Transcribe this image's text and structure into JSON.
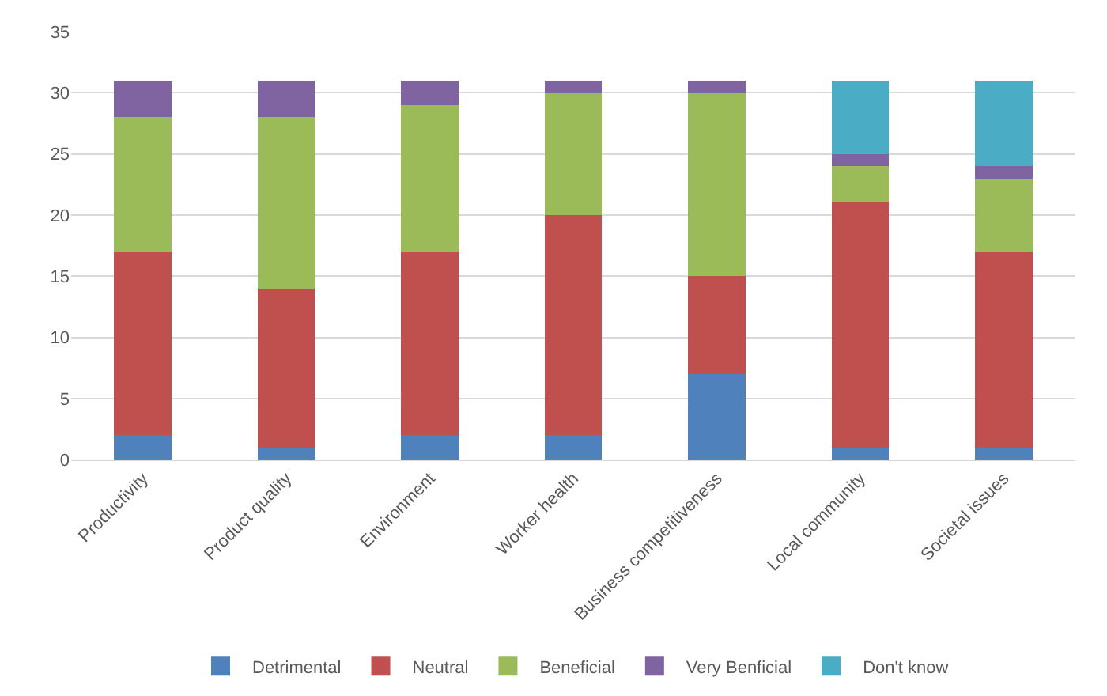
{
  "chart_data": {
    "type": "bar",
    "stacked": true,
    "categories": [
      "Productivity",
      "Product quality",
      "Environment",
      "Worker health",
      "Business competitiveness",
      "Local community",
      "Societal issues"
    ],
    "series": [
      {
        "name": "Detrimental",
        "color": "#4f81bd",
        "values": [
          2,
          1,
          2,
          2,
          7,
          1,
          1
        ]
      },
      {
        "name": "Neutral",
        "color": "#c0504d",
        "values": [
          15,
          13,
          15,
          18,
          8,
          20,
          16
        ]
      },
      {
        "name": "Beneficial",
        "color": "#9bbb59",
        "values": [
          11,
          14,
          12,
          10,
          15,
          3,
          6
        ]
      },
      {
        "name": "Very Benficial",
        "color": "#8064a2",
        "values": [
          3,
          3,
          2,
          1,
          1,
          1,
          1
        ]
      },
      {
        "name": "Don't know",
        "color": "#4bacc6",
        "values": [
          0,
          0,
          0,
          0,
          0,
          6,
          7
        ]
      }
    ],
    "ylim": [
      0,
      35
    ],
    "yticks": [
      0,
      5,
      10,
      15,
      20,
      25,
      30,
      35
    ],
    "grid": "y",
    "legend": "bottom"
  }
}
